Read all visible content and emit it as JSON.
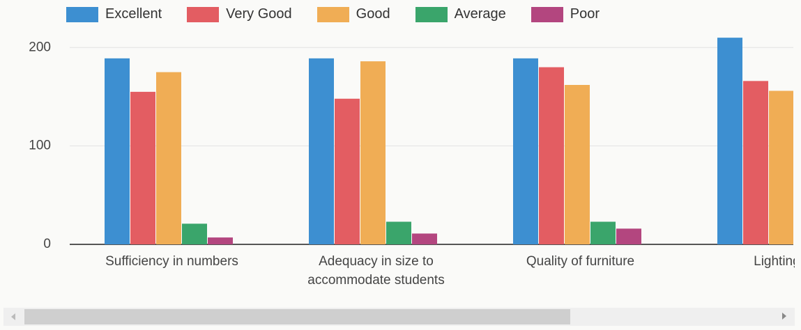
{
  "chart_data": {
    "type": "bar",
    "categories": [
      "Sufficiency in numbers",
      "Adequacy in size to accommodate students",
      "Quality of furniture",
      "Lighting ar"
    ],
    "series": [
      {
        "name": "Excellent",
        "color": "#3d8fd1",
        "values": [
          189,
          189,
          189,
          210
        ]
      },
      {
        "name": "Very Good",
        "color": "#e35d62",
        "values": [
          155,
          148,
          180,
          166
        ]
      },
      {
        "name": "Good",
        "color": "#f0ad55",
        "values": [
          175,
          186,
          162,
          156
        ]
      },
      {
        "name": "Average",
        "color": "#3aa56b",
        "values": [
          21,
          23,
          23,
          null
        ]
      },
      {
        "name": "Poor",
        "color": "#b3467f",
        "values": [
          7,
          11,
          16,
          null
        ]
      }
    ],
    "ylim": [
      0,
      220
    ],
    "yticks": [
      0,
      100,
      200
    ],
    "grid": true,
    "legend": "top"
  }
}
